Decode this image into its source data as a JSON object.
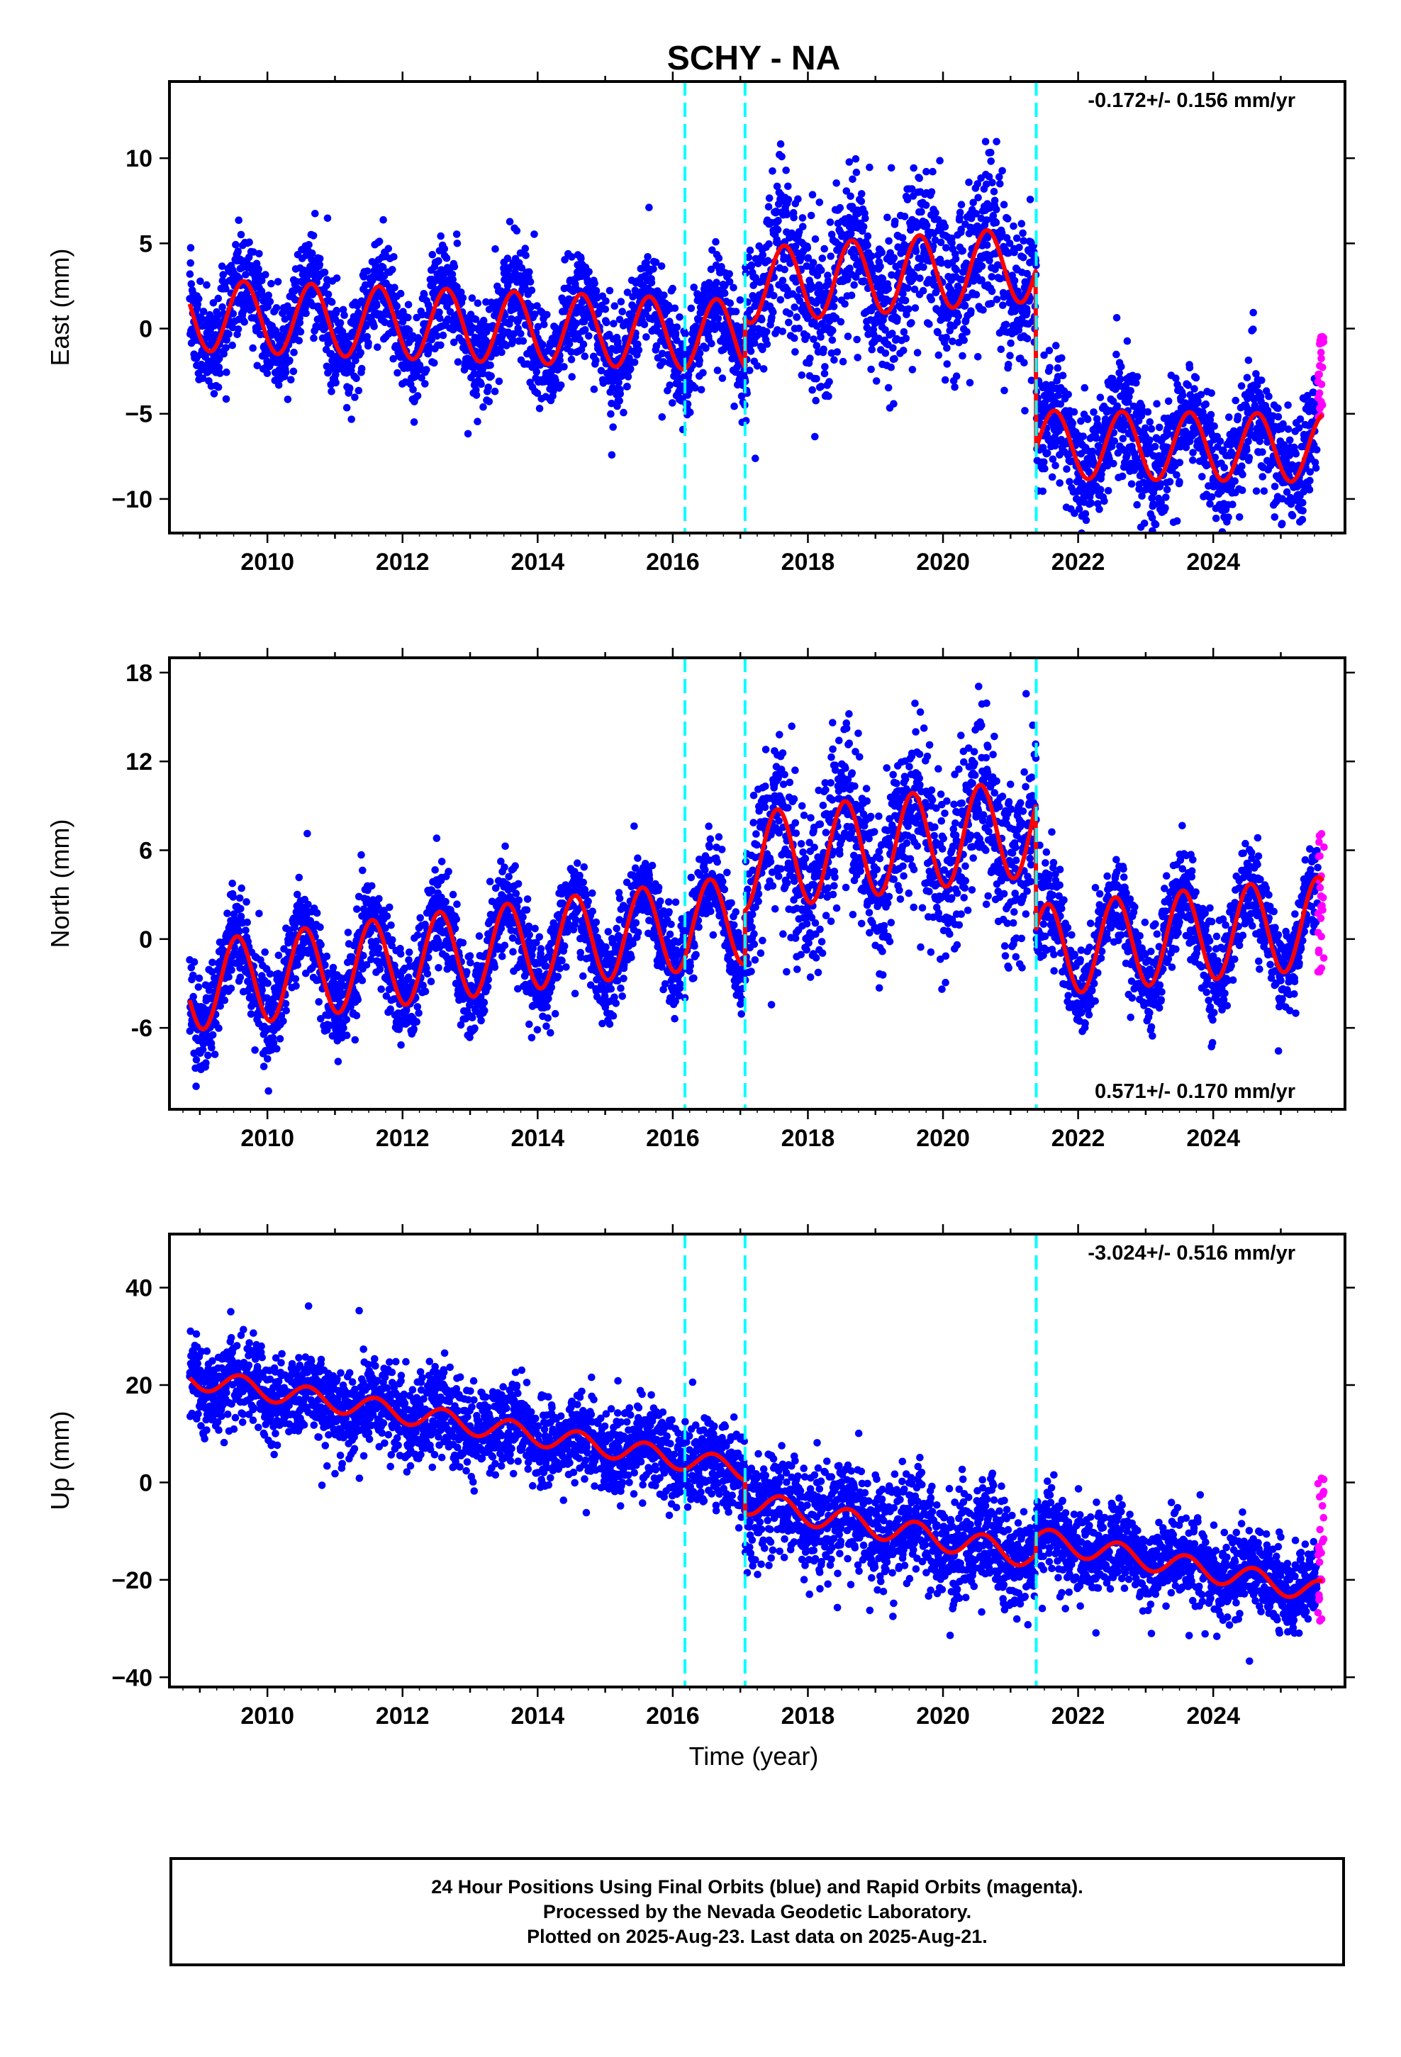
{
  "chart_title": "SCHY - NA",
  "x_axis_label": "Time (year)",
  "footer": {
    "line1": "24 Hour Positions Using Final Orbits (blue) and Rapid Orbits (magenta).",
    "line2": "Processed by the Nevada Geodetic Laboratory.",
    "line3": "Plotted on 2025-Aug-23. Last data on 2025-Aug-21."
  },
  "colors": {
    "final_orbits": "#0000ff",
    "rapid_orbits": "#ff00ff",
    "model_fit": "#ff0000",
    "break_lines": "#00ffff",
    "axes": "#000000"
  },
  "chart_data": [
    {
      "type": "scatter",
      "name": "east",
      "ylabel": "East (mm)",
      "rate_label": "-0.172+/- 0.156 mm/yr",
      "rate_position": "top-right",
      "xlim": [
        2008.55,
        2025.95
      ],
      "ylim": [
        -12,
        14.5
      ],
      "x_ticks": [
        2010,
        2012,
        2014,
        2016,
        2018,
        2020,
        2022,
        2024
      ],
      "x_tick_labels": [
        "2010",
        "2012",
        "2014",
        "2016",
        "2018",
        "2020",
        "2022",
        "2024"
      ],
      "y_ticks": [
        -10,
        -5,
        0,
        5,
        10
      ],
      "y_tick_labels": [
        "−10",
        "−5",
        "0",
        "5",
        "10"
      ],
      "grid": false,
      "breaks": [
        2016.18,
        2017.07,
        2021.38
      ],
      "model": {
        "type": "line",
        "segments": [
          {
            "x0": 2008.85,
            "x1": 2017.07,
            "offset": 0.8,
            "rate": -0.15,
            "amp": 2.1,
            "phase_peak": 0.65,
            "start_year": 2008.85
          },
          {
            "x0": 2017.07,
            "x1": 2021.38,
            "offset": 2.5,
            "rate": 0.3,
            "amp": 2.2,
            "phase_peak": 0.65,
            "start_year": 2017.07
          },
          {
            "x0": 2021.38,
            "x1": 2025.63,
            "offset": -6.8,
            "rate": -0.05,
            "amp": 2.0,
            "phase_peak": 0.65,
            "start_year": 2021.38
          }
        ]
      },
      "final_orbits": {
        "x_range": [
          2008.85,
          2025.55
        ],
        "scatter_sd": [
          1.5,
          2.4,
          1.8
        ],
        "step": 0.0038
      },
      "rapid_orbits": {
        "x_range": [
          2025.55,
          2025.64
        ],
        "y_range": [
          -5.5,
          -0.2
        ]
      }
    },
    {
      "type": "scatter",
      "name": "north",
      "ylabel": "North (mm)",
      "rate_label": "0.571+/- 0.170 mm/yr",
      "rate_position": "bottom-right",
      "xlim": [
        2008.55,
        2025.95
      ],
      "ylim": [
        -11.5,
        19
      ],
      "x_ticks": [
        2010,
        2012,
        2014,
        2016,
        2018,
        2020,
        2022,
        2024
      ],
      "x_tick_labels": [
        "2010",
        "2012",
        "2014",
        "2016",
        "2018",
        "2020",
        "2022",
        "2024"
      ],
      "y_ticks": [
        -6,
        0,
        6,
        12,
        18
      ],
      "y_tick_labels": [
        "-6",
        "0",
        "6",
        "12",
        "18"
      ],
      "grid": false,
      "breaks": [
        2016.18,
        2017.07,
        2021.38
      ],
      "model": {
        "type": "line",
        "segments": [
          {
            "x0": 2008.85,
            "x1": 2017.07,
            "offset": -3.2,
            "rate": 0.55,
            "amp": 3.0,
            "phase_peak": 0.55,
            "start_year": 2008.85
          },
          {
            "x0": 2017.07,
            "x1": 2021.38,
            "offset": 5.2,
            "rate": 0.55,
            "amp": 3.3,
            "phase_peak": 0.55,
            "start_year": 2017.07
          },
          {
            "x0": 2021.38,
            "x1": 2025.63,
            "offset": -0.8,
            "rate": 0.45,
            "amp": 3.1,
            "phase_peak": 0.55,
            "start_year": 2021.38
          }
        ]
      },
      "final_orbits": {
        "x_range": [
          2008.85,
          2025.55
        ],
        "scatter_sd": [
          1.6,
          2.8,
          1.6
        ],
        "step": 0.0038
      },
      "rapid_orbits": {
        "x_range": [
          2025.55,
          2025.64
        ],
        "y_range": [
          -2.5,
          7.3
        ]
      }
    },
    {
      "type": "scatter",
      "name": "up",
      "ylabel": "Up (mm)",
      "rate_label": "-3.024+/- 0.516 mm/yr",
      "rate_position": "top-right",
      "xlim": [
        2008.55,
        2025.95
      ],
      "ylim": [
        -42,
        51
      ],
      "x_ticks": [
        2010,
        2012,
        2014,
        2016,
        2018,
        2020,
        2022,
        2024
      ],
      "x_tick_labels": [
        "2010",
        "2012",
        "2014",
        "2016",
        "2018",
        "2020",
        "2022",
        "2024"
      ],
      "y_ticks": [
        -40,
        -20,
        0,
        20,
        40
      ],
      "y_tick_labels": [
        "−40",
        "−20",
        "0",
        "20",
        "40"
      ],
      "grid": false,
      "breaks": [
        2016.18,
        2017.07,
        2021.38
      ],
      "model": {
        "type": "line",
        "segments": [
          {
            "x0": 2008.85,
            "x1": 2017.07,
            "offset": 21.5,
            "rate": -2.3,
            "amp": 2.2,
            "phase_peak": 0.6,
            "start_year": 2008.85
          },
          {
            "x0": 2017.07,
            "x1": 2021.38,
            "offset": -4.0,
            "rate": -2.6,
            "amp": 2.5,
            "phase_peak": 0.6,
            "start_year": 2017.07
          },
          {
            "x0": 2021.38,
            "x1": 2025.63,
            "offset": -11.5,
            "rate": -2.6,
            "amp": 2.3,
            "phase_peak": 0.6,
            "start_year": 2021.38
          }
        ]
      },
      "final_orbits": {
        "x_range": [
          2008.85,
          2025.55
        ],
        "scatter_sd": [
          4.5,
          5.5,
          4.2
        ],
        "step": 0.0038
      },
      "rapid_orbits": {
        "x_range": [
          2025.55,
          2025.64
        ],
        "y_range": [
          -30,
          1
        ]
      }
    }
  ]
}
